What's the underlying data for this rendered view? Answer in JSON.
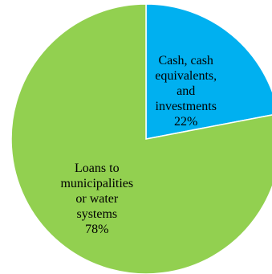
{
  "chart_data": {
    "type": "pie",
    "title": "",
    "slices": [
      {
        "label_lines": [
          "Cash, cash",
          "equivalents,",
          "and",
          "investments"
        ],
        "percent_label": "22%",
        "value": 22,
        "color": "#00b0f0"
      },
      {
        "label_lines": [
          "Loans to",
          "municipalities",
          "or water",
          "systems"
        ],
        "percent_label": "78%",
        "value": 78,
        "color": "#92d050"
      }
    ],
    "start_angle_deg": 0,
    "direction": "clockwise",
    "legend": "none"
  }
}
